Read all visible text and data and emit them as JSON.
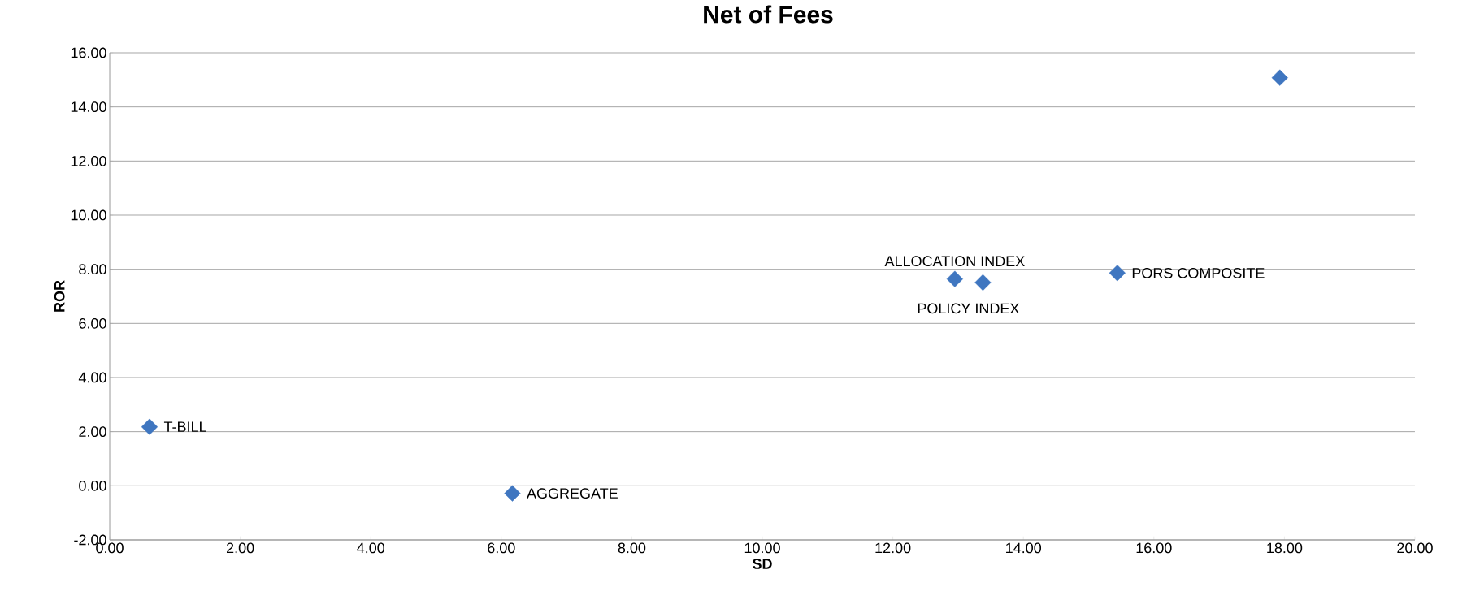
{
  "chart_data": {
    "type": "scatter",
    "title": "Net of Fees",
    "xlabel": "SD",
    "ylabel": "ROR",
    "x": [
      0.61,
      6.17,
      12.95,
      13.38,
      15.44,
      17.93
    ],
    "series": [
      {
        "color": "#3f76c0",
        "values": [
          2.18,
          -0.28,
          7.64,
          7.51,
          7.86,
          15.08
        ]
      }
    ],
    "marker": "diamond",
    "grid": "y",
    "xlim": [
      0,
      20
    ],
    "ylim": [
      -2,
      16
    ],
    "xticks": [
      {
        "value": 0,
        "label": "0.00"
      },
      {
        "value": 2,
        "label": "2.00"
      },
      {
        "value": 4,
        "label": "4.00"
      },
      {
        "value": 6,
        "label": "6.00"
      },
      {
        "value": 8,
        "label": "8.00"
      },
      {
        "value": 10,
        "label": "10.00"
      },
      {
        "value": 12,
        "label": "12.00"
      },
      {
        "value": 14,
        "label": "14.00"
      },
      {
        "value": 16,
        "label": "16.00"
      },
      {
        "value": 18,
        "label": "18.00"
      },
      {
        "value": 20,
        "label": "20.00"
      }
    ],
    "yticks": [
      {
        "value": -2,
        "label": "-2.00"
      },
      {
        "value": 0,
        "label": "0.00"
      },
      {
        "value": 2,
        "label": "2.00"
      },
      {
        "value": 4,
        "label": "4.00"
      },
      {
        "value": 6,
        "label": "6.00"
      },
      {
        "value": 8,
        "label": "8.00"
      },
      {
        "value": 10,
        "label": "10.00"
      },
      {
        "value": 12,
        "label": "12.00"
      },
      {
        "value": 14,
        "label": "14.00"
      },
      {
        "value": 16,
        "label": "16.00"
      }
    ],
    "annotations": [
      {
        "text": "T-BILL",
        "x": 0.61,
        "y": 2.18
      },
      {
        "text": "AGGREGATE",
        "x": 6.17,
        "y": -0.28
      },
      {
        "text": "ALLOCATION INDEX",
        "x": 12.95,
        "y": 7.64
      },
      {
        "text": "POLICY INDEX",
        "x": 13.38,
        "y": 7.51
      },
      {
        "text": "PORS COMPOSITE",
        "x": 15.44,
        "y": 7.86
      }
    ]
  }
}
